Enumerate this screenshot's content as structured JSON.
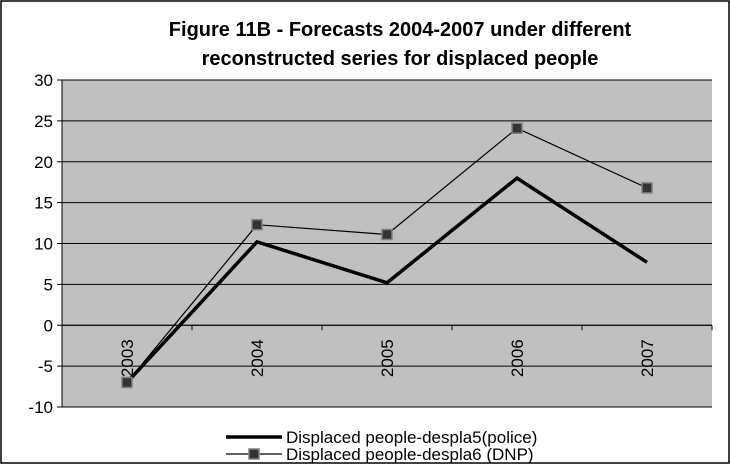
{
  "chart_data": {
    "type": "line",
    "title_line1": "Figure 11B - Forecasts 2004-2007 under different",
    "title_line2": "reconstructed series for displaced people",
    "categories": [
      "2003",
      "2004",
      "2005",
      "2006",
      "2007"
    ],
    "ylim": [
      -10,
      30
    ],
    "yticks": [
      -10,
      -5,
      0,
      5,
      10,
      15,
      20,
      25,
      30
    ],
    "grid": true,
    "legend_position": "bottom",
    "series": [
      {
        "name": "Displaced people-despla5(police)",
        "values": [
          -7,
          10.2,
          5.2,
          18,
          7.7
        ],
        "color": "#000000",
        "marker": "none"
      },
      {
        "name": "Displaced people-despla6 (DNP)",
        "values": [
          -7,
          12.3,
          11.1,
          24.1,
          16.8
        ],
        "color": "#000000",
        "marker": "square"
      }
    ]
  },
  "colors": {
    "plot_background": "#c0c0c0",
    "gridline": "#000000",
    "marker_fill": "#333333",
    "marker_edge": "#808080"
  }
}
